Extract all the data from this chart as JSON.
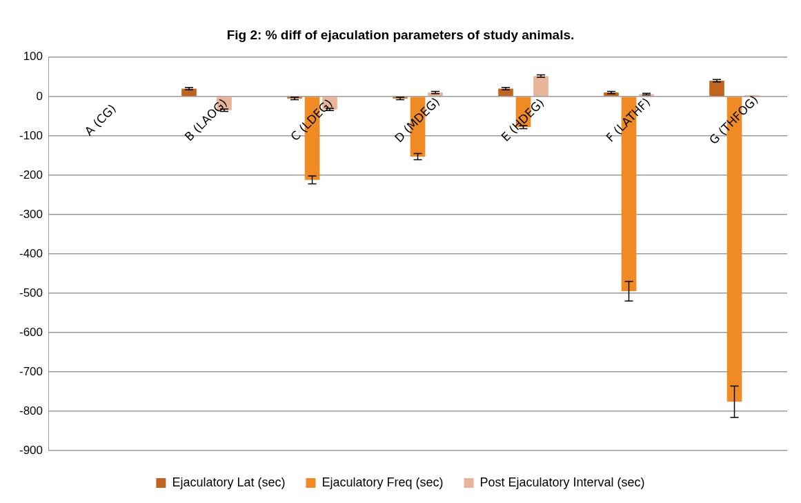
{
  "chart_data": {
    "type": "bar",
    "title": "Fig 2: % diff of ejaculation parameters of study animals.",
    "categories": [
      "A (CG)",
      "B (LAOG)",
      "C (LDEG)",
      "D (MDEG)",
      "E (HDEG)",
      "F (LATHF)",
      "G (THFOG)"
    ],
    "series": [
      {
        "name": "Ejaculatory Lat (sec)",
        "color": "#c0651f",
        "values": [
          0,
          20,
          -5,
          -5,
          20,
          10,
          40
        ],
        "errors": [
          null,
          3,
          3,
          3,
          3,
          3,
          3
        ]
      },
      {
        "name": "Ejaculatory Freq (sec)",
        "color": "#f08a24",
        "values": [
          0,
          null,
          -212,
          -153,
          -78,
          -495,
          -776
        ],
        "errors": [
          null,
          null,
          10,
          8,
          4,
          25,
          40
        ]
      },
      {
        "name": "Post Ejaculatory Interval (sec)",
        "color": "#e8b59a",
        "values": [
          0,
          -35,
          -33,
          10,
          52,
          6,
          3
        ],
        "errors": [
          null,
          3,
          3,
          3,
          3,
          2,
          null
        ]
      }
    ],
    "ylim": [
      -900,
      100
    ],
    "yticks": [
      -900,
      -800,
      -700,
      -600,
      -500,
      -400,
      -300,
      -200,
      -100,
      0,
      100
    ],
    "grid": "y",
    "legend": "bottom"
  }
}
